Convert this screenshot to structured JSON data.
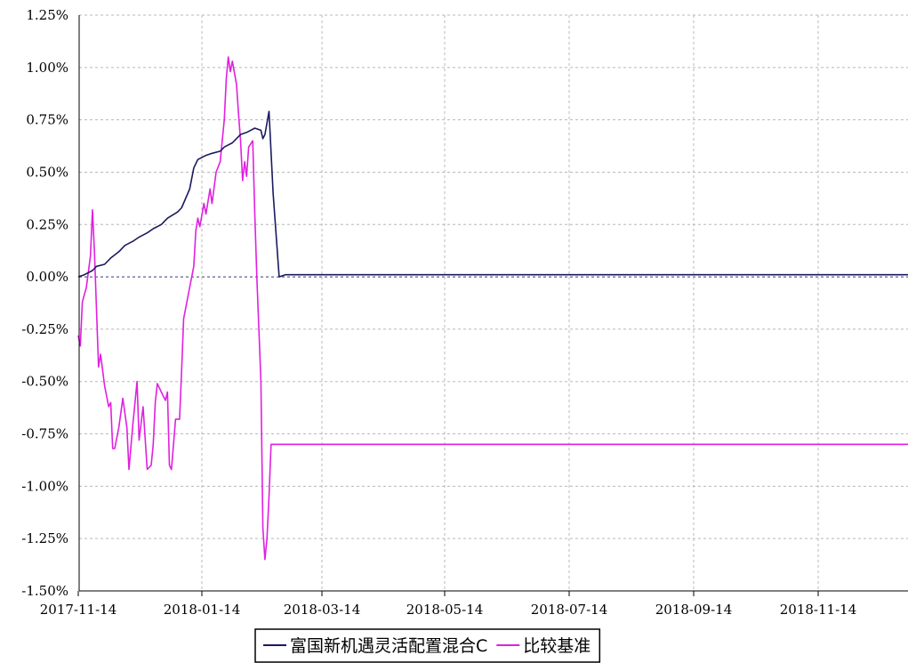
{
  "chart_data": {
    "type": "line",
    "ylim": [
      -1.5,
      1.25
    ],
    "y_ticks": [
      "1.25%",
      "1.00%",
      "0.75%",
      "0.50%",
      "0.25%",
      "0.00%",
      "-0.25%",
      "-0.50%",
      "-0.75%",
      "-1.00%",
      "-1.25%",
      "-1.50%"
    ],
    "y_tick_values": [
      1.25,
      1.0,
      0.75,
      0.5,
      0.25,
      0.0,
      -0.25,
      -0.5,
      -0.75,
      -1.0,
      -1.25,
      -1.5
    ],
    "x_ticks": [
      "2017-11-14",
      "2018-01-14",
      "2018-03-14",
      "2018-05-14",
      "2018-07-14",
      "2018-09-14",
      "2018-11-14"
    ],
    "xlim": [
      "2017-11-14",
      "2019-01-14"
    ],
    "grid": true,
    "legend_position": "bottom",
    "series": [
      {
        "name": "富国新机遇灵活配置混合C",
        "color": "#1a1a5e",
        "points": [
          [
            "2017-11-14",
            0.0
          ],
          [
            "2017-11-17",
            0.01
          ],
          [
            "2017-11-21",
            0.03
          ],
          [
            "2017-11-23",
            0.05
          ],
          [
            "2017-11-27",
            0.06
          ],
          [
            "2017-11-30",
            0.09
          ],
          [
            "2017-12-04",
            0.12
          ],
          [
            "2017-12-07",
            0.15
          ],
          [
            "2017-12-11",
            0.17
          ],
          [
            "2017-12-14",
            0.19
          ],
          [
            "2017-12-18",
            0.21
          ],
          [
            "2017-12-21",
            0.23
          ],
          [
            "2017-12-25",
            0.25
          ],
          [
            "2017-12-28",
            0.28
          ],
          [
            "2018-01-02",
            0.31
          ],
          [
            "2018-01-04",
            0.33
          ],
          [
            "2018-01-08",
            0.42
          ],
          [
            "2018-01-10",
            0.52
          ],
          [
            "2018-01-12",
            0.56
          ],
          [
            "2018-01-16",
            0.58
          ],
          [
            "2018-01-19",
            0.59
          ],
          [
            "2018-01-23",
            0.6
          ],
          [
            "2018-01-25",
            0.62
          ],
          [
            "2018-01-29",
            0.64
          ],
          [
            "2018-01-31",
            0.66
          ],
          [
            "2018-02-02",
            0.68
          ],
          [
            "2018-02-05",
            0.69
          ],
          [
            "2018-02-07",
            0.7
          ],
          [
            "2018-02-09",
            0.71
          ],
          [
            "2018-02-12",
            0.7
          ],
          [
            "2018-02-13",
            0.66
          ],
          [
            "2018-02-14",
            0.68
          ],
          [
            "2018-02-16",
            0.79
          ],
          [
            "2018-02-18",
            0.4
          ],
          [
            "2018-02-21",
            0.0
          ],
          [
            "2018-02-24",
            0.01
          ],
          [
            "2018-03-01",
            0.01
          ],
          [
            "2019-01-14",
            0.01
          ]
        ]
      },
      {
        "name": "比较基准",
        "color": "#e020e0",
        "points": [
          [
            "2017-11-14",
            -0.28
          ],
          [
            "2017-11-15",
            -0.33
          ],
          [
            "2017-11-16",
            -0.12
          ],
          [
            "2017-11-18",
            -0.05
          ],
          [
            "2017-11-20",
            0.1
          ],
          [
            "2017-11-21",
            0.32
          ],
          [
            "2017-11-22",
            0.12
          ],
          [
            "2017-11-24",
            -0.43
          ],
          [
            "2017-11-25",
            -0.37
          ],
          [
            "2017-11-27",
            -0.52
          ],
          [
            "2017-11-29",
            -0.62
          ],
          [
            "2017-11-30",
            -0.6
          ],
          [
            "2017-12-01",
            -0.82
          ],
          [
            "2017-12-02",
            -0.82
          ],
          [
            "2017-12-04",
            -0.72
          ],
          [
            "2017-12-06",
            -0.58
          ],
          [
            "2017-12-08",
            -0.72
          ],
          [
            "2017-12-09",
            -0.92
          ],
          [
            "2017-12-11",
            -0.7
          ],
          [
            "2017-12-13",
            -0.5
          ],
          [
            "2017-12-14",
            -0.78
          ],
          [
            "2017-12-16",
            -0.62
          ],
          [
            "2017-12-18",
            -0.92
          ],
          [
            "2017-12-20",
            -0.9
          ],
          [
            "2017-12-21",
            -0.8
          ],
          [
            "2017-12-22",
            -0.6
          ],
          [
            "2017-12-23",
            -0.51
          ],
          [
            "2017-12-25",
            -0.55
          ],
          [
            "2017-12-27",
            -0.59
          ],
          [
            "2017-12-28",
            -0.55
          ],
          [
            "2017-12-29",
            -0.9
          ],
          [
            "2017-12-30",
            -0.92
          ],
          [
            "2018-01-01",
            -0.68
          ],
          [
            "2018-01-03",
            -0.68
          ],
          [
            "2018-01-04",
            -0.45
          ],
          [
            "2018-01-05",
            -0.2
          ],
          [
            "2018-01-08",
            -0.05
          ],
          [
            "2018-01-10",
            0.05
          ],
          [
            "2018-01-11",
            0.22
          ],
          [
            "2018-01-12",
            0.28
          ],
          [
            "2018-01-13",
            0.24
          ],
          [
            "2018-01-15",
            0.35
          ],
          [
            "2018-01-16",
            0.3
          ],
          [
            "2018-01-18",
            0.42
          ],
          [
            "2018-01-19",
            0.35
          ],
          [
            "2018-01-21",
            0.5
          ],
          [
            "2018-01-23",
            0.55
          ],
          [
            "2018-01-25",
            0.75
          ],
          [
            "2018-01-26",
            0.95
          ],
          [
            "2018-01-27",
            1.05
          ],
          [
            "2018-01-28",
            0.98
          ],
          [
            "2018-01-29",
            1.03
          ],
          [
            "2018-01-31",
            0.92
          ],
          [
            "2018-02-01",
            0.78
          ],
          [
            "2018-02-02",
            0.65
          ],
          [
            "2018-02-03",
            0.46
          ],
          [
            "2018-02-04",
            0.55
          ],
          [
            "2018-02-05",
            0.48
          ],
          [
            "2018-02-06",
            0.62
          ],
          [
            "2018-02-08",
            0.65
          ],
          [
            "2018-02-09",
            0.3
          ],
          [
            "2018-02-10",
            0.0
          ],
          [
            "2018-02-12",
            -0.5
          ],
          [
            "2018-02-13",
            -1.2
          ],
          [
            "2018-02-14",
            -1.35
          ],
          [
            "2018-02-15",
            -1.25
          ],
          [
            "2018-02-16",
            -1.05
          ],
          [
            "2018-02-17",
            -0.8
          ],
          [
            "2019-01-14",
            -0.8
          ]
        ]
      }
    ]
  }
}
